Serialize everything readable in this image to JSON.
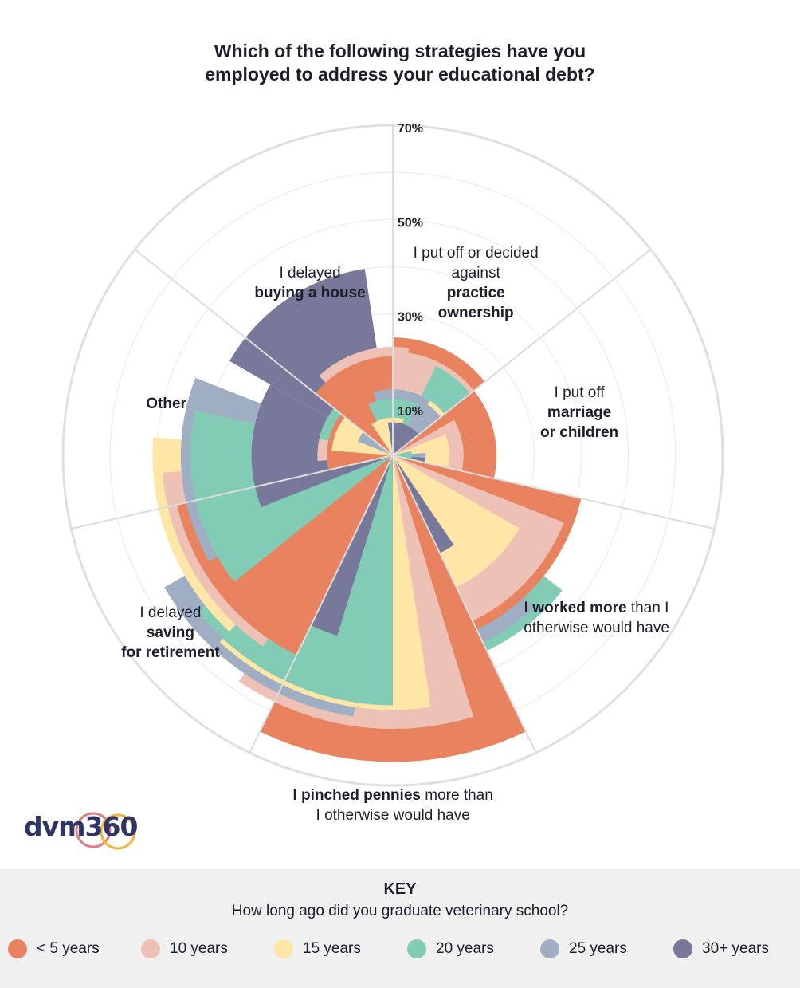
{
  "title_line1": "Which of the following strategies have you",
  "title_line2": "employed to address your educational debt?",
  "logo_text": "dvm360",
  "key": {
    "title": "KEY",
    "subtitle": "How long ago did you graduate veterinary school?"
  },
  "chart_data": {
    "type": "radial-bar",
    "title": "Which of the following strategies have you employed to address your educational debt?",
    "r_tick_labels": [
      "10%",
      "30%",
      "50%",
      "70%"
    ],
    "rlim": [
      0,
      70
    ],
    "categories": [
      {
        "parts": [
          [
            "I put off or decided",
            false
          ],
          [
            "against ",
            false
          ],
          [
            "practice",
            true
          ],
          [
            "ownership",
            true
          ]
        ]
      },
      {
        "parts": [
          [
            "I put off",
            false
          ],
          [
            "marriage",
            true
          ],
          [
            "or children",
            true
          ]
        ]
      },
      {
        "parts": [
          [
            "I worked more",
            true
          ],
          [
            " than I",
            false
          ],
          [
            "otherwise would have",
            false
          ]
        ]
      },
      {
        "parts": [
          [
            "I pinched pennies",
            true
          ],
          [
            " more than",
            false
          ],
          [
            "I otherwise would have",
            false
          ]
        ]
      },
      {
        "parts": [
          [
            "I delayed ",
            false
          ],
          [
            "saving",
            true
          ],
          [
            "for retirement",
            true
          ]
        ]
      },
      {
        "parts": [
          [
            "Other",
            true
          ]
        ]
      },
      {
        "parts": [
          [
            "I delayed",
            false
          ],
          [
            "buying a house",
            true
          ]
        ]
      }
    ],
    "series": [
      {
        "name": "< 5 years",
        "color": "#e8825f",
        "values": [
          25,
          22,
          41,
          65,
          47,
          14,
          21
        ]
      },
      {
        "name": "10 years",
        "color": "#eec1b7",
        "values": [
          22,
          15,
          39,
          58,
          49,
          16,
          23
        ]
      },
      {
        "name": "15 years",
        "color": "#fde6a6",
        "values": [
          14,
          12,
          31,
          54,
          51,
          13,
          8
        ]
      },
      {
        "name": "20 years",
        "color": "#82ccb6",
        "values": [
          21,
          4,
          46,
          53,
          43,
          16,
          12
        ]
      },
      {
        "name": "25 years",
        "color": "#a0aec3",
        "values": [
          13,
          7,
          44,
          56,
          45,
          8,
          14
        ]
      },
      {
        "name": "30+ years",
        "color": "#78799a",
        "values": [
          7,
          7,
          23,
          40,
          30,
          40,
          7
        ]
      }
    ]
  }
}
